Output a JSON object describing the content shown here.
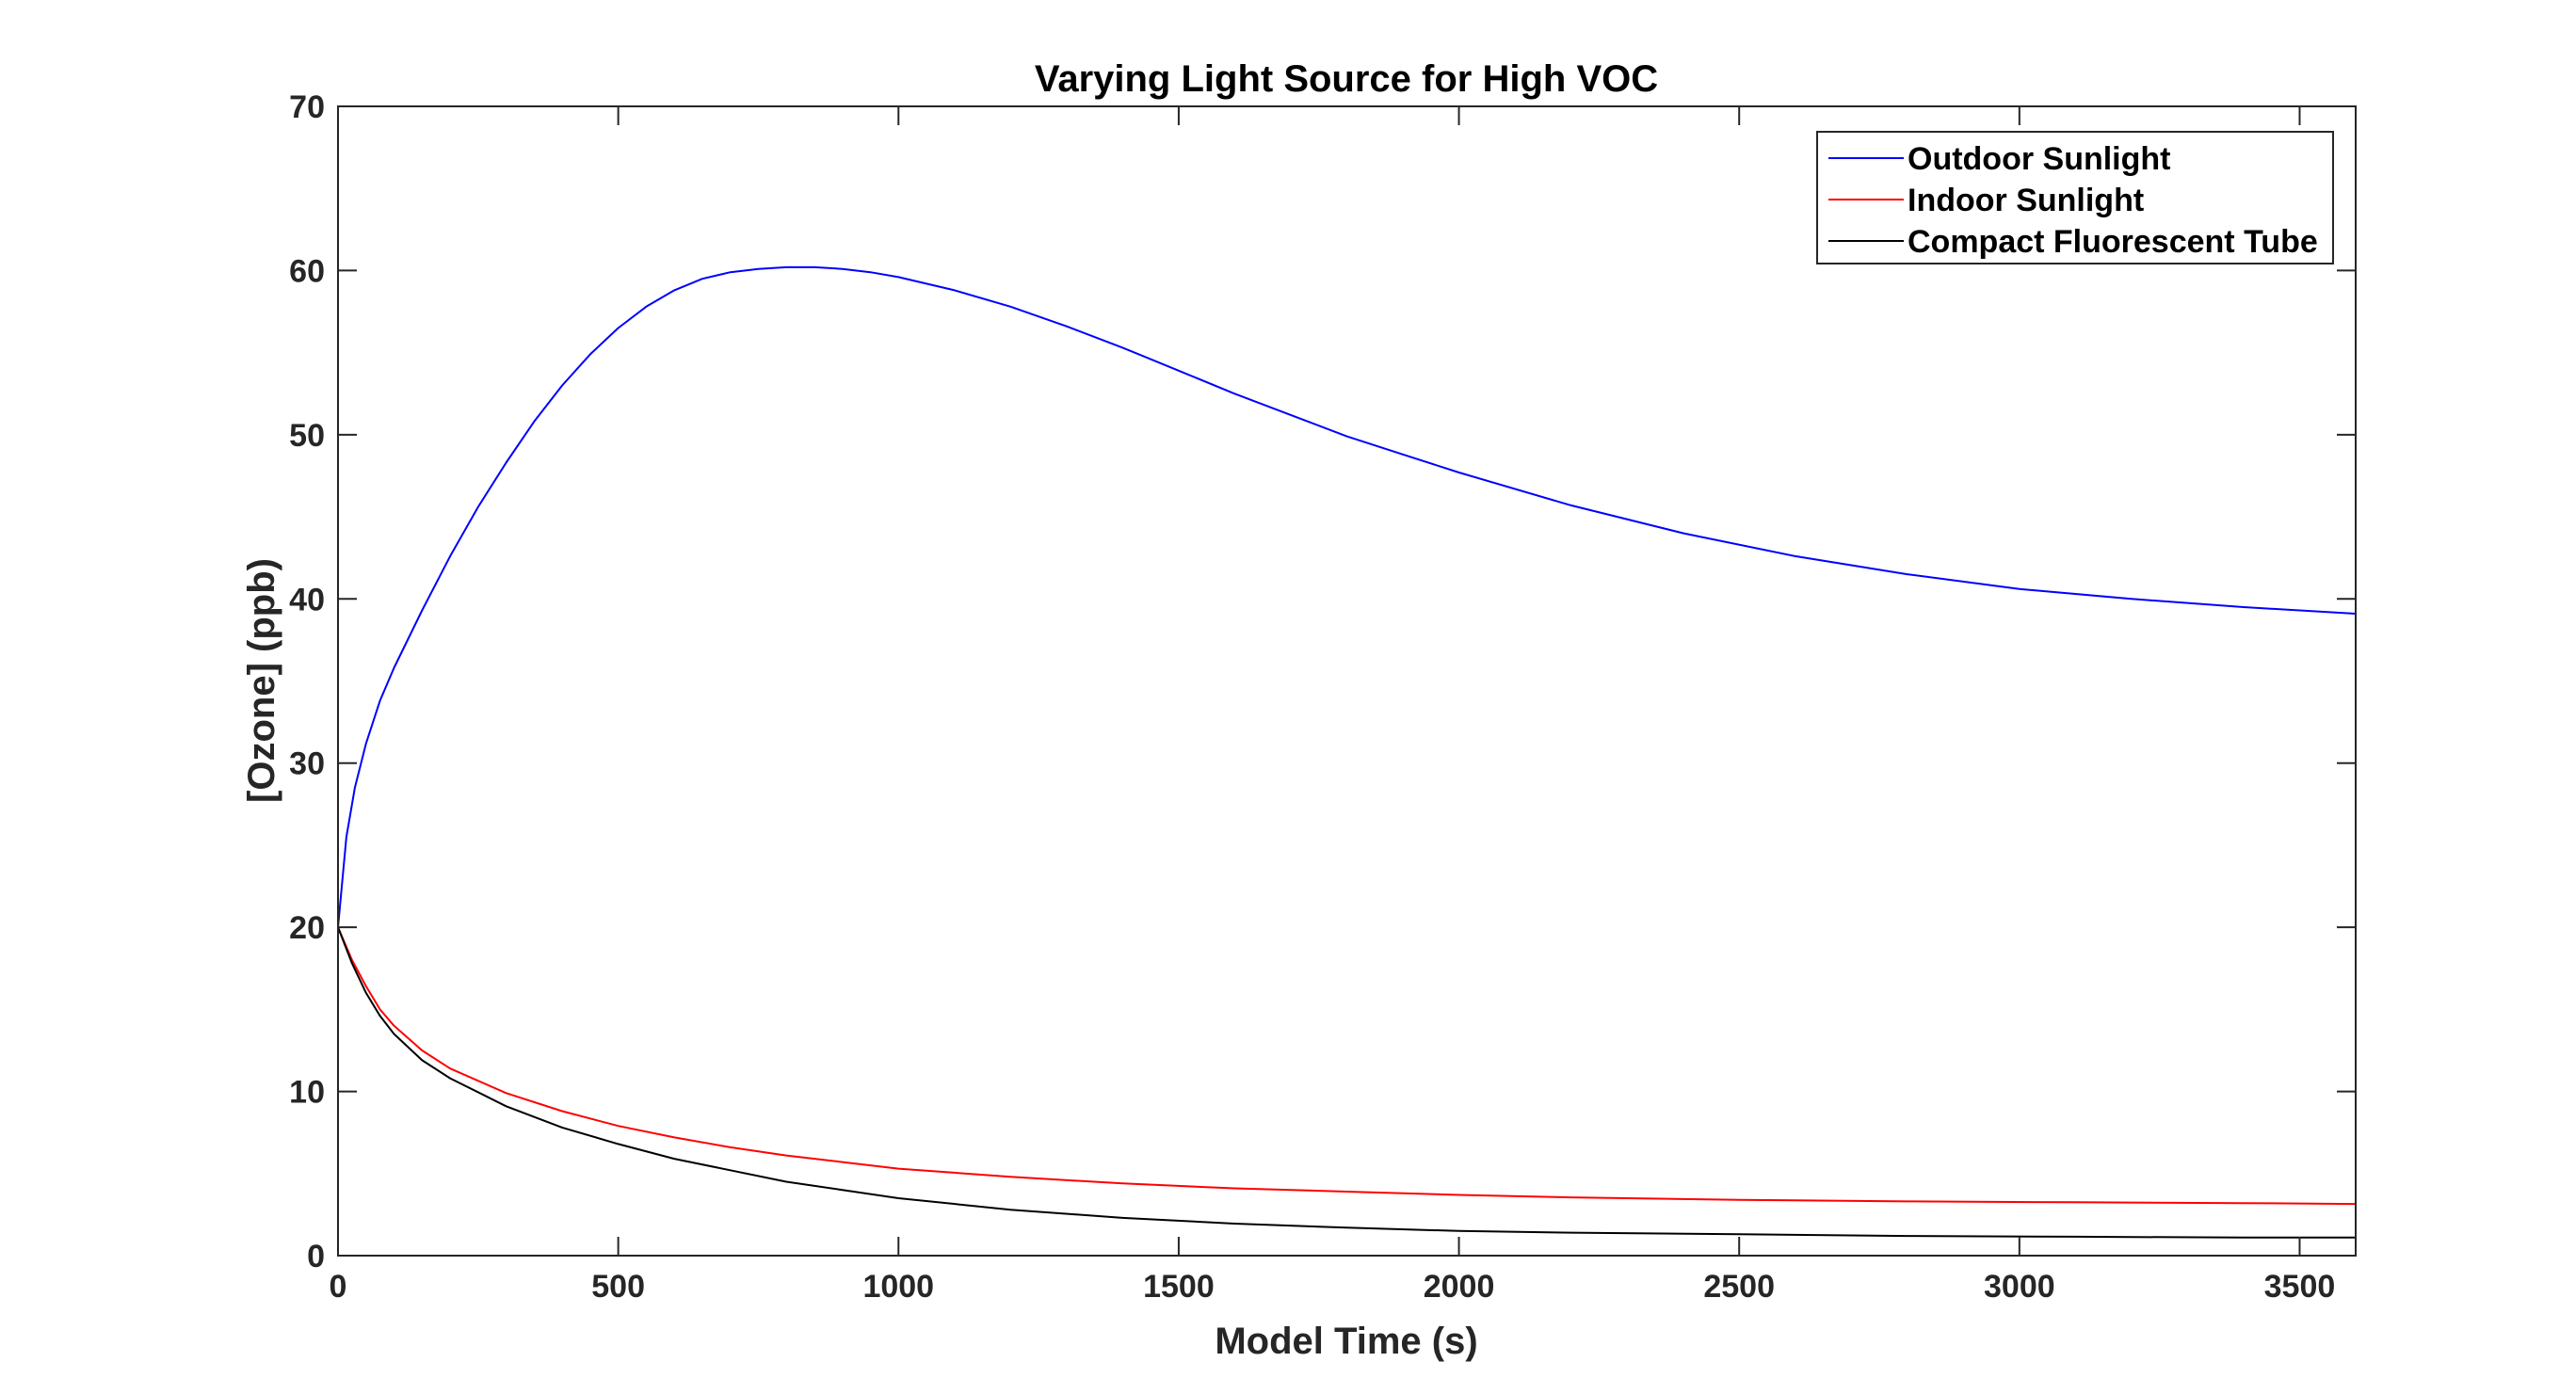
{
  "chart_data": {
    "type": "line",
    "title": "Varying Light Source for High VOC",
    "xlabel": "Model Time (s)",
    "ylabel": "[Ozone] (ppb)",
    "xlim": [
      0,
      3600
    ],
    "ylim": [
      0,
      70
    ],
    "xticks": [
      0,
      500,
      1000,
      1500,
      2000,
      2500,
      3000,
      3500
    ],
    "yticks": [
      0,
      10,
      20,
      30,
      40,
      50,
      60,
      70
    ],
    "grid": false,
    "legend_position": "top-right",
    "series": [
      {
        "name": "Outdoor Sunlight",
        "color": "#0000ff",
        "x": [
          0,
          15,
          30,
          50,
          75,
          100,
          150,
          200,
          250,
          300,
          350,
          400,
          450,
          500,
          550,
          600,
          650,
          700,
          750,
          800,
          850,
          900,
          950,
          1000,
          1100,
          1200,
          1300,
          1400,
          1500,
          1600,
          1700,
          1800,
          1900,
          2000,
          2200,
          2400,
          2600,
          2800,
          3000,
          3200,
          3400,
          3600
        ],
        "y": [
          20,
          25.5,
          28.5,
          31.2,
          33.8,
          35.8,
          39.3,
          42.6,
          45.6,
          48.3,
          50.8,
          53.0,
          54.9,
          56.5,
          57.8,
          58.8,
          59.5,
          59.9,
          60.1,
          60.2,
          60.2,
          60.1,
          59.9,
          59.6,
          58.8,
          57.8,
          56.6,
          55.3,
          53.9,
          52.5,
          51.2,
          49.9,
          48.8,
          47.7,
          45.7,
          44.0,
          42.6,
          41.5,
          40.6,
          40.0,
          39.5,
          39.1
        ]
      },
      {
        "name": "Indoor Sunlight",
        "color": "#ff0000",
        "x": [
          0,
          25,
          50,
          75,
          100,
          150,
          200,
          300,
          400,
          500,
          600,
          700,
          800,
          900,
          1000,
          1200,
          1400,
          1600,
          1800,
          2000,
          2200,
          2500,
          2800,
          3100,
          3400,
          3600
        ],
        "y": [
          20,
          18.0,
          16.4,
          15.0,
          14.0,
          12.5,
          11.4,
          9.9,
          8.8,
          7.9,
          7.2,
          6.6,
          6.1,
          5.7,
          5.3,
          4.8,
          4.4,
          4.1,
          3.9,
          3.7,
          3.55,
          3.4,
          3.3,
          3.25,
          3.2,
          3.15
        ]
      },
      {
        "name": "Compact Fluorescent Tube",
        "color": "#000000",
        "x": [
          0,
          25,
          50,
          75,
          100,
          150,
          200,
          300,
          400,
          500,
          600,
          700,
          800,
          900,
          1000,
          1200,
          1400,
          1600,
          1800,
          2000,
          2200,
          2500,
          2800,
          3100,
          3400,
          3600
        ],
        "y": [
          20,
          17.8,
          16.0,
          14.6,
          13.5,
          11.9,
          10.8,
          9.1,
          7.8,
          6.8,
          5.9,
          5.2,
          4.5,
          4.0,
          3.5,
          2.8,
          2.3,
          1.95,
          1.7,
          1.5,
          1.4,
          1.3,
          1.2,
          1.15,
          1.1,
          1.1
        ]
      }
    ]
  }
}
